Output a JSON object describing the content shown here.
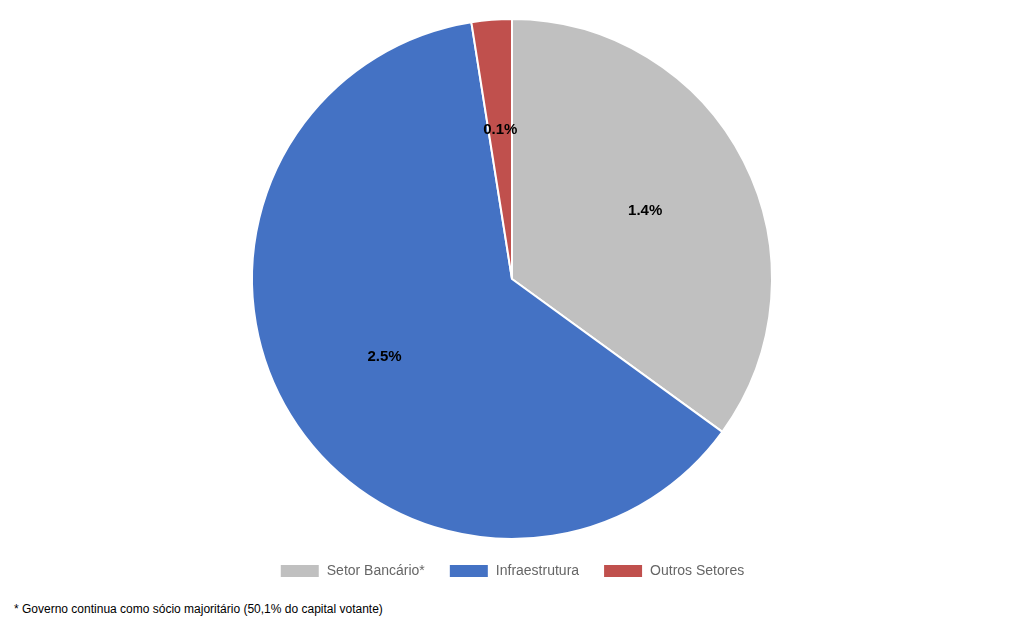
{
  "chart_data": {
    "type": "pie",
    "categories": [
      "Setor Bancário*",
      "Infraestrutura",
      "Outros Setores"
    ],
    "values": [
      1.4,
      2.5,
      0.1
    ],
    "value_labels": [
      "1.4%",
      "2.5%",
      "0.1%"
    ],
    "colors": [
      "#c0c0c0",
      "#4472c4",
      "#c0504d"
    ],
    "data_labels": true,
    "legend": "bottom",
    "annotations": [
      "* Governo continua como sócio majoritário (50,1% do capital votante)"
    ]
  }
}
